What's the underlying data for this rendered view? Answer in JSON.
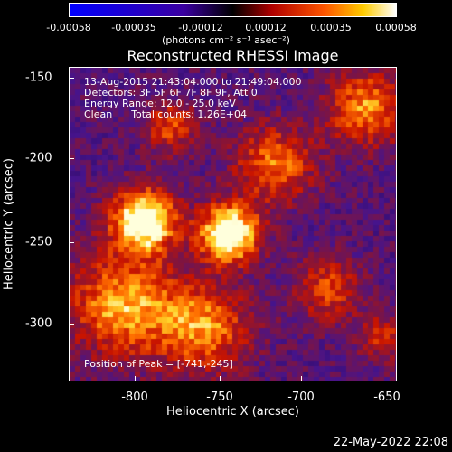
{
  "colorbar": {
    "ticks": [
      "-0.00058",
      "-0.00035",
      "-0.00012",
      "0.00012",
      "0.00035",
      "0.00058"
    ],
    "units": "(photons cm⁻² s⁻¹ asec⁻²)"
  },
  "title": "Reconstructed RHESSI Image",
  "info": {
    "time_range": "13-Aug-2015 21:43:04.000 to 21:49:04.000",
    "detectors": "Detectors: 3F 5F 6F 7F 8F 9F, Att 0",
    "energy": "Energy Range: 12.0 - 25.0 keV",
    "clean": "Clean      Total counts: 1.26E+04",
    "peak": "Position of Peak = [-741,-245]"
  },
  "axes": {
    "xlabel": "Heliocentric X (arcsec)",
    "ylabel": "Heliocentric Y (arcsec)",
    "xticks": [
      "-800",
      "-750",
      "-700",
      "-650"
    ],
    "yticks": [
      "-150",
      "-200",
      "-250",
      "-300"
    ]
  },
  "timestamp": "22-May-2022 22:08"
}
